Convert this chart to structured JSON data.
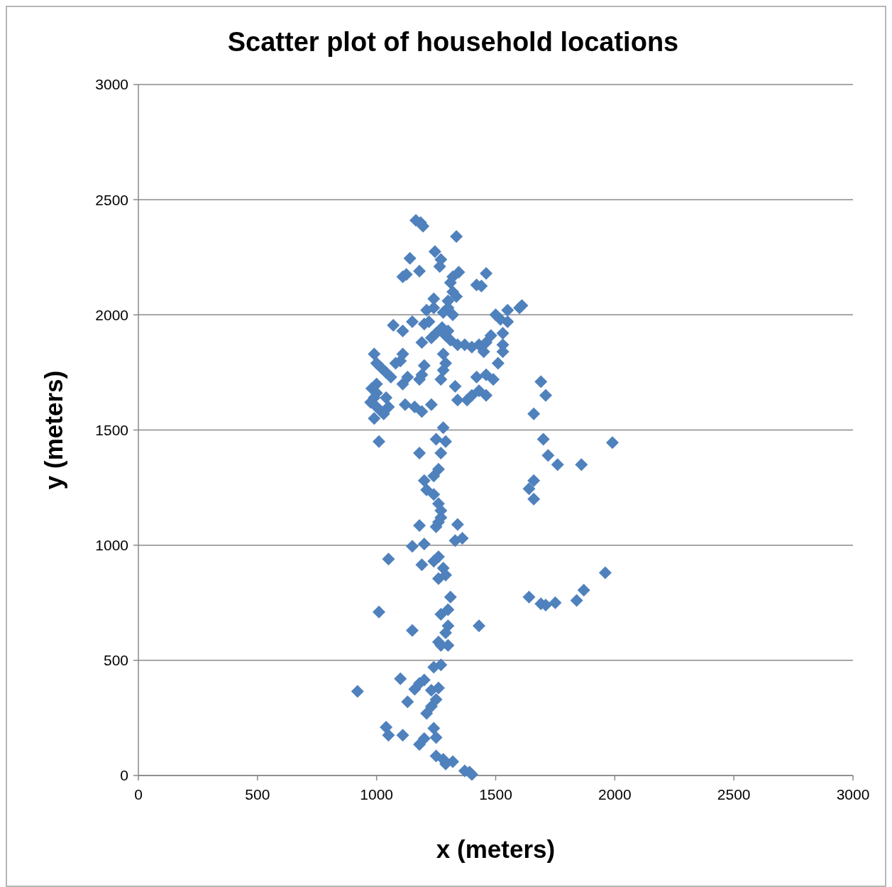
{
  "chart_data": {
    "type": "scatter",
    "title": "Scatter plot of household locations",
    "xlabel": "x (meters)",
    "ylabel": "y (meters)",
    "xlim": [
      0,
      3000
    ],
    "ylim": [
      0,
      3000
    ],
    "xticks": [
      0,
      500,
      1000,
      1500,
      2000,
      2500,
      3000
    ],
    "yticks": [
      0,
      500,
      1000,
      1500,
      2000,
      2500,
      3000
    ],
    "grid": "y",
    "marker": "diamond",
    "color": "#4f81bd",
    "x": [
      1165,
      1185,
      1195,
      1335,
      1140,
      1245,
      1270,
      1265,
      1180,
      1110,
      1125,
      1460,
      1345,
      1320,
      1310,
      1420,
      1440,
      1320,
      1335,
      1240,
      1300,
      1210,
      1240,
      1280,
      1320,
      1300,
      1150,
      1070,
      1110,
      1200,
      1220,
      1250,
      1275,
      1290,
      1300,
      1230,
      1310,
      1340,
      1370,
      1400,
      1430,
      1450,
      1460,
      1480,
      1500,
      1520,
      1550,
      1550,
      1600,
      1610,
      1530,
      1530,
      1530,
      1510,
      1190,
      1110,
      1100,
      1080,
      1280,
      1290,
      1280,
      1200,
      1190,
      1180,
      1130,
      1110,
      1060,
      990,
      1000,
      1020,
      1040,
      1000,
      980,
      1000,
      990,
      975,
      1000,
      1020,
      990,
      1040,
      1050,
      1030,
      1010,
      1120,
      1160,
      1190,
      1230,
      1270,
      1330,
      1340,
      1380,
      1400,
      1430,
      1420,
      1460,
      1490,
      1460,
      1280,
      1250,
      1290,
      1270,
      1180,
      1260,
      1240,
      1200,
      1210,
      1240,
      1260,
      1270,
      1270,
      1260,
      1250,
      1340,
      1330,
      1360,
      1180,
      1150,
      1200,
      1050,
      1260,
      1240,
      1190,
      1280,
      1290,
      1260,
      1310,
      1300,
      1270,
      1430,
      1300,
      1290,
      1260,
      1270,
      1300,
      1150,
      1010,
      1270,
      1240,
      1100,
      1200,
      1180,
      1260,
      1230,
      1160,
      920,
      1130,
      1250,
      1230,
      1210,
      1040,
      1050,
      1110,
      1240,
      1200,
      1250,
      1180,
      1250,
      1280,
      1290,
      1320,
      1370,
      1390,
      1400,
      1690,
      1710,
      1660,
      1700,
      1720,
      1760,
      1860,
      1990,
      1660,
      1640,
      1660,
      1960,
      1870,
      1840,
      1640,
      1690,
      1710,
      1750
    ],
    "values": [
      2410,
      2400,
      2385,
      2340,
      2245,
      2275,
      2240,
      2210,
      2190,
      2165,
      2175,
      2180,
      2185,
      2165,
      2140,
      2130,
      2125,
      2100,
      2080,
      2070,
      2060,
      2020,
      2030,
      2010,
      2000,
      2030,
      1970,
      1955,
      1930,
      1960,
      1970,
      1920,
      1945,
      1910,
      1930,
      1900,
      1890,
      1870,
      1870,
      1860,
      1870,
      1840,
      1880,
      1910,
      2000,
      1980,
      2020,
      1970,
      2030,
      2040,
      1920,
      1870,
      1840,
      1790,
      1880,
      1830,
      1800,
      1790,
      1830,
      1790,
      1760,
      1780,
      1740,
      1720,
      1730,
      1700,
      1730,
      1830,
      1790,
      1770,
      1750,
      1700,
      1680,
      1660,
      1640,
      1620,
      1600,
      1580,
      1550,
      1640,
      1600,
      1570,
      1450,
      1610,
      1600,
      1580,
      1610,
      1720,
      1690,
      1630,
      1630,
      1650,
      1670,
      1730,
      1740,
      1720,
      1650,
      1510,
      1460,
      1450,
      1400,
      1400,
      1330,
      1300,
      1280,
      1240,
      1220,
      1180,
      1150,
      1120,
      1100,
      1080,
      1090,
      1020,
      1030,
      1085,
      995,
      1005,
      940,
      950,
      930,
      915,
      900,
      870,
      855,
      775,
      720,
      700,
      650,
      650,
      620,
      580,
      565,
      565,
      630,
      710,
      480,
      470,
      420,
      415,
      400,
      380,
      370,
      375,
      365,
      320,
      330,
      300,
      270,
      210,
      175,
      175,
      205,
      160,
      165,
      135,
      85,
      70,
      50,
      60,
      20,
      15,
      5,
      1710,
      1650,
      1570,
      1460,
      1390,
      1350,
      1350,
      1445,
      1280,
      1245,
      1200,
      880,
      805,
      760,
      775,
      745,
      740,
      750
    ]
  }
}
